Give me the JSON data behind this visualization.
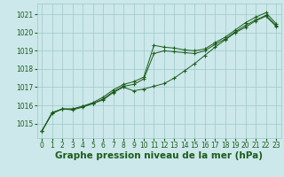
{
  "bg_color": "#cce8ea",
  "grid_color": "#9dc8c8",
  "line_color": "#1a5c1a",
  "xlabel": "Graphe pression niveau de la mer (hPa)",
  "xlabel_color": "#1a5c1a",
  "xlabel_fontsize": 7.5,
  "tick_color": "#1a5c1a",
  "tick_fontsize": 5.5,
  "xlim": [
    -0.5,
    23.5
  ],
  "ylim": [
    1014.2,
    1021.6
  ],
  "yticks": [
    1015,
    1016,
    1017,
    1018,
    1019,
    1020,
    1021
  ],
  "xticks": [
    0,
    1,
    2,
    3,
    4,
    5,
    6,
    7,
    8,
    9,
    10,
    11,
    12,
    13,
    14,
    15,
    16,
    17,
    18,
    19,
    20,
    21,
    22,
    23
  ],
  "series": [
    [
      1014.6,
      1015.6,
      1015.8,
      1015.8,
      1015.95,
      1016.15,
      1016.45,
      1016.85,
      1017.15,
      1017.3,
      1017.55,
      1019.3,
      1019.2,
      1019.15,
      1019.05,
      1019.0,
      1019.1,
      1019.45,
      1019.75,
      1020.15,
      1020.55,
      1020.85,
      1021.1,
      1020.5
    ],
    [
      1014.6,
      1015.6,
      1015.8,
      1015.8,
      1015.95,
      1016.1,
      1016.35,
      1016.75,
      1017.05,
      1017.15,
      1017.45,
      1018.85,
      1019.0,
      1018.95,
      1018.9,
      1018.85,
      1019.0,
      1019.35,
      1019.65,
      1020.05,
      1020.4,
      1020.7,
      1020.95,
      1020.4
    ],
    [
      1014.6,
      1015.55,
      1015.8,
      1015.75,
      1015.9,
      1016.1,
      1016.3,
      1016.7,
      1017.0,
      1016.8,
      1016.9,
      1017.05,
      1017.2,
      1017.5,
      1017.9,
      1018.3,
      1018.75,
      1019.2,
      1019.6,
      1020.0,
      1020.3,
      1020.65,
      1020.9,
      1020.35
    ]
  ]
}
